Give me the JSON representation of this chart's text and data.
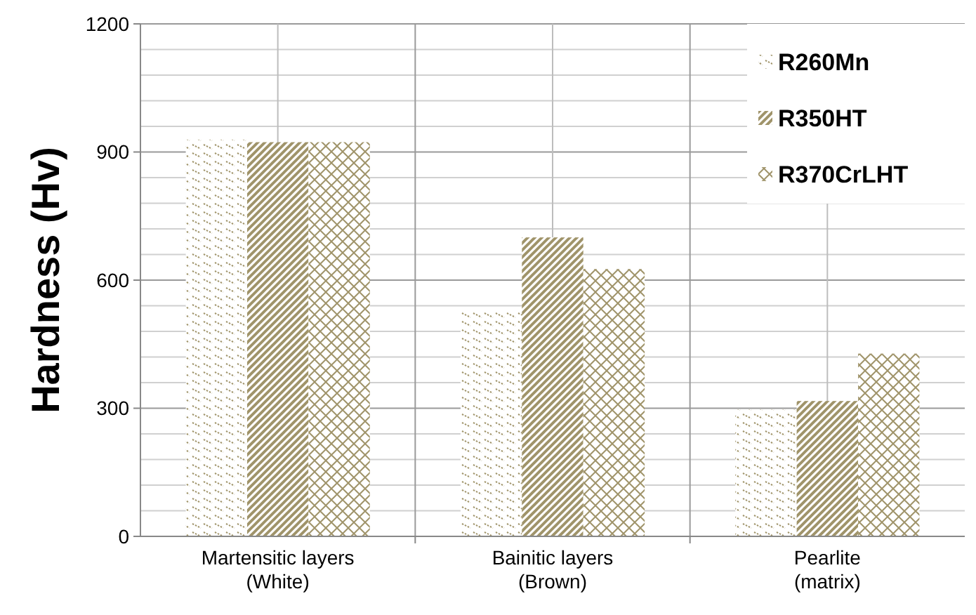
{
  "chart_data": {
    "type": "bar",
    "ylabel": "Hardness (Hv)",
    "categories": [
      "Martensitic layers (White)",
      "Bainitic layers (Brown)",
      "Pearlite (matrix)"
    ],
    "series": [
      {
        "name": "R260Mn",
        "color": "#a0946a",
        "values": [
          929,
          530,
          297
        ]
      },
      {
        "name": "R350HT",
        "color": "#a0946a",
        "values": [
          923,
          700,
          317
        ]
      },
      {
        "name": "R370CrLHT",
        "color": "#a0946a",
        "values": [
          923,
          626,
          428
        ]
      }
    ],
    "ylim": [
      0,
      1200
    ],
    "yticks": [
      0,
      300,
      600,
      900,
      1200
    ],
    "grid": true,
    "legend": "top right"
  }
}
